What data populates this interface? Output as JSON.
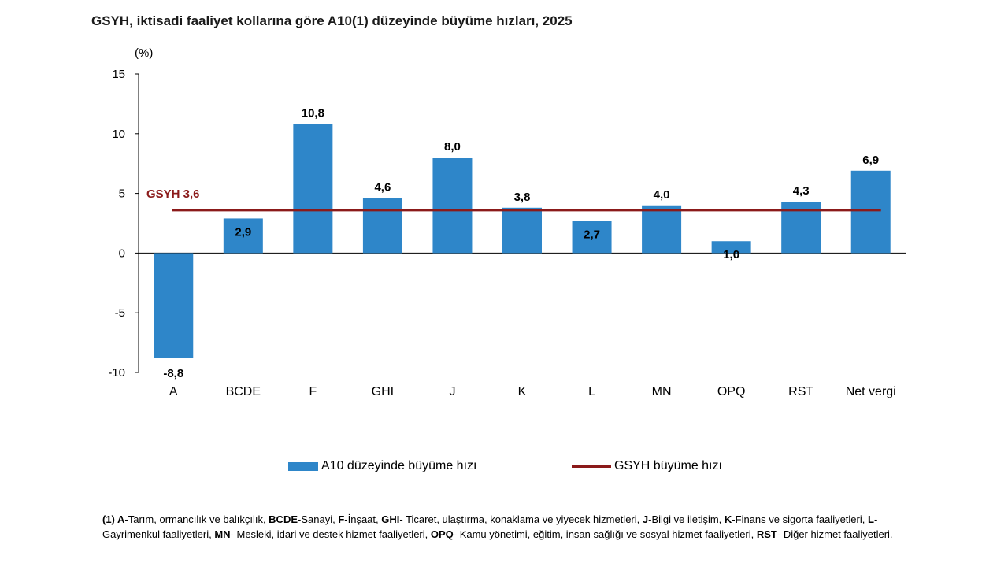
{
  "title": "GSYH, iktisadi faaliyet kollarına göre A10(1) düzeyinde büyüme hızları, 2025",
  "colors": {
    "bar": "#2e86c9",
    "reference_line": "#8b1a1a"
  },
  "chart_data": {
    "type": "bar",
    "title": "GSYH, iktisadi faaliyet kollarına göre A10(1) düzeyinde büyüme hızları, 2025",
    "ylabel": "(%)",
    "xlabel": "",
    "ylim": [
      -10,
      15
    ],
    "yticks": [
      15,
      10,
      5,
      0,
      -5,
      -10
    ],
    "categories": [
      "A",
      "BCDE",
      "F",
      "GHI",
      "J",
      "K",
      "L",
      "MN",
      "OPQ",
      "RST",
      "Net vergi"
    ],
    "series": [
      {
        "name": "A10 düzeyinde büyüme hızı",
        "type": "bar",
        "values": [
          -8.8,
          2.9,
          10.8,
          4.6,
          8.0,
          3.8,
          2.7,
          4.0,
          1.0,
          4.3,
          6.9
        ],
        "labels": [
          "-8,8",
          "2,9",
          "10,8",
          "4,6",
          "8,0",
          "3,8",
          "2,7",
          "4,0",
          "1,0",
          "4,3",
          "6,9"
        ]
      },
      {
        "name": "GSYH büyüme hızı",
        "type": "line",
        "value": 3.6
      }
    ],
    "reference_label": "GSYH 3,6",
    "grid": false,
    "legend_position": "bottom"
  },
  "legend": {
    "bar_label": "A10 düzeyinde büyüme hızı",
    "line_label": "GSYH büyüme hızı"
  },
  "footnote": {
    "parts": [
      {
        "b": "(1) A",
        "t": "-Tarım, ormancılık ve balıkçılık, "
      },
      {
        "b": "BCDE",
        "t": "-Sanayi, "
      },
      {
        "b": "F",
        "t": "-İnşaat, "
      },
      {
        "b": "GHI",
        "t": "- Ticaret, ulaştırma, konaklama ve yiyecek hizmetleri, "
      },
      {
        "b": "J",
        "t": "-Bilgi ve iletişim, "
      },
      {
        "b": "K",
        "t": "-Finans ve sigorta faaliyetleri, "
      },
      {
        "b": "L",
        "t": "-Gayrimenkul faaliyetleri, "
      },
      {
        "b": "MN",
        "t": "- Mesleki, idari ve destek hizmet faaliyetleri, "
      },
      {
        "b": "OPQ",
        "t": "- Kamu yönetimi, eğitim, insan sağlığı ve sosyal hizmet faaliyetleri, "
      },
      {
        "b": "RST",
        "t": "- Diğer hizmet faaliyetleri."
      }
    ]
  }
}
